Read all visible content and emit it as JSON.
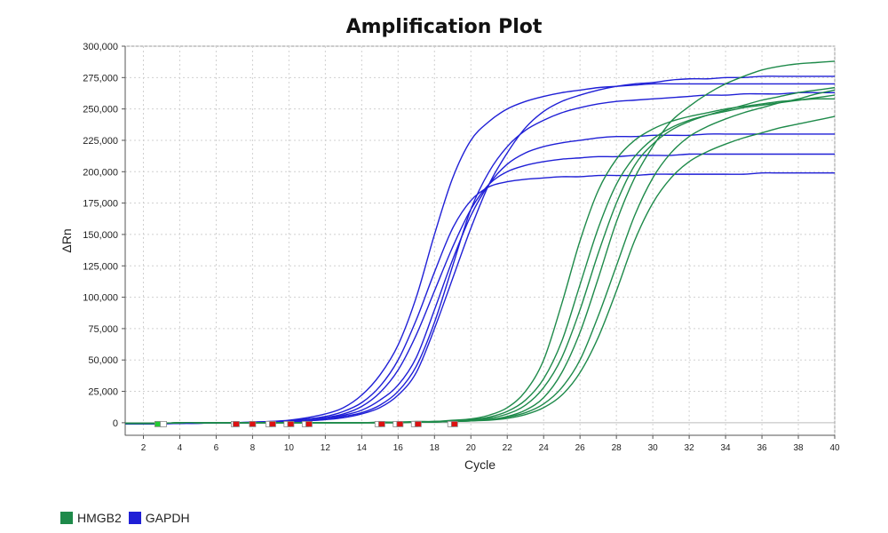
{
  "chart_data": {
    "type": "line",
    "title": "Amplification Plot",
    "xlabel": "Cycle",
    "ylabel": "ΔRn",
    "xlim": [
      1,
      40
    ],
    "ylim": [
      -10000,
      300000
    ],
    "xticks": [
      2,
      4,
      6,
      8,
      10,
      12,
      14,
      16,
      18,
      20,
      22,
      24,
      26,
      28,
      30,
      32,
      34,
      36,
      38,
      40
    ],
    "xtick_labels": [
      "2",
      "4",
      "6",
      "8",
      "10",
      "12",
      "14",
      "16",
      "18",
      "20",
      "22",
      "24",
      "26",
      "28",
      "30",
      "32",
      "34",
      "36",
      "38",
      "40"
    ],
    "yticks": [
      0,
      25000,
      50000,
      75000,
      100000,
      125000,
      150000,
      175000,
      200000,
      225000,
      250000,
      275000,
      300000
    ],
    "ytick_labels": [
      "0",
      "25,000",
      "50,000",
      "75,000",
      "100,000",
      "125,000",
      "150,000",
      "175,000",
      "200,000",
      "225,000",
      "250,000",
      "275,000",
      "300,000"
    ],
    "grid": true,
    "legend_position": "bottom-left",
    "legend": [
      {
        "label": "HMGB2",
        "color": "#1e8a4a"
      },
      {
        "label": "GAPDH",
        "color": "#1f1fd6"
      }
    ],
    "x": [
      1,
      2,
      3,
      4,
      5,
      6,
      7,
      8,
      9,
      10,
      11,
      12,
      13,
      14,
      15,
      16,
      17,
      18,
      19,
      20,
      21,
      22,
      23,
      24,
      25,
      26,
      27,
      28,
      29,
      30,
      31,
      32,
      33,
      34,
      35,
      36,
      37,
      38,
      39,
      40
    ],
    "series": [
      {
        "group": "GAPDH",
        "color": "#1f1fd6",
        "values": [
          -1000,
          -1000,
          -1000,
          -500,
          -500,
          0,
          0,
          500,
          1000,
          2000,
          4000,
          7000,
          12000,
          22000,
          38000,
          62000,
          100000,
          150000,
          195000,
          225000,
          240000,
          250000,
          256000,
          260000,
          263000,
          265000,
          267000,
          268000,
          269000,
          270000,
          270000,
          270000,
          270000,
          270000,
          270000,
          270000,
          270000,
          270000,
          270000,
          270000
        ]
      },
      {
        "group": "GAPDH",
        "color": "#1f1fd6",
        "values": [
          -1000,
          -1000,
          -500,
          -500,
          -500,
          0,
          0,
          0,
          500,
          1000,
          2000,
          4000,
          7000,
          13000,
          24000,
          42000,
          70000,
          105000,
          140000,
          170000,
          190000,
          200000,
          205000,
          208000,
          210000,
          211000,
          212000,
          212000,
          213000,
          213000,
          213000,
          214000,
          214000,
          214000,
          214000,
          214000,
          214000,
          214000,
          214000,
          214000
        ]
      },
      {
        "group": "GAPDH",
        "color": "#1f1fd6",
        "values": [
          -1000,
          -1000,
          -500,
          -500,
          0,
          0,
          0,
          500,
          1000,
          1500,
          3000,
          5000,
          9000,
          16000,
          29000,
          50000,
          82000,
          120000,
          155000,
          177000,
          188000,
          192000,
          194000,
          195000,
          196000,
          196000,
          197000,
          197000,
          197000,
          198000,
          198000,
          198000,
          198000,
          198000,
          198000,
          199000,
          199000,
          199000,
          199000,
          199000
        ]
      },
      {
        "group": "GAPDH",
        "color": "#1f1fd6",
        "values": [
          -1000,
          -1000,
          -500,
          -500,
          0,
          0,
          0,
          0,
          500,
          1000,
          2000,
          3500,
          6000,
          10000,
          18000,
          30000,
          52000,
          90000,
          130000,
          165000,
          190000,
          206000,
          215000,
          220000,
          223000,
          225000,
          227000,
          228000,
          228000,
          229000,
          229000,
          229000,
          230000,
          230000,
          230000,
          230000,
          230000,
          230000,
          230000,
          230000
        ]
      },
      {
        "group": "GAPDH",
        "color": "#1f1fd6",
        "values": [
          -1000,
          -1000,
          -500,
          -500,
          0,
          0,
          0,
          0,
          500,
          800,
          1500,
          2500,
          5000,
          8000,
          14000,
          25000,
          45000,
          80000,
          125000,
          170000,
          200000,
          220000,
          233000,
          241000,
          247000,
          251000,
          254000,
          256000,
          257000,
          258000,
          259000,
          260000,
          261000,
          261000,
          262000,
          262000,
          262000,
          263000,
          263000,
          263000
        ]
      },
      {
        "group": "GAPDH",
        "color": "#1f1fd6",
        "values": [
          -1000,
          -1000,
          -500,
          -500,
          0,
          0,
          0,
          0,
          500,
          800,
          1500,
          2500,
          4000,
          7000,
          12000,
          22000,
          40000,
          75000,
          115000,
          155000,
          190000,
          215000,
          235000,
          248000,
          256000,
          261000,
          265000,
          268000,
          270000,
          271000,
          273000,
          274000,
          274000,
          275000,
          275000,
          276000,
          276000,
          276000,
          276000,
          276000
        ]
      },
      {
        "group": "HMGB2",
        "color": "#1e8a4a",
        "values": [
          -500,
          -500,
          -500,
          0,
          0,
          0,
          0,
          0,
          0,
          0,
          0,
          0,
          0,
          0,
          500,
          500,
          1000,
          1000,
          2000,
          3000,
          6000,
          12000,
          25000,
          50000,
          95000,
          145000,
          185000,
          210000,
          225000,
          234000,
          240000,
          244000,
          247000,
          250000,
          252000,
          254000,
          256000,
          257000,
          258000,
          258000
        ]
      },
      {
        "group": "HMGB2",
        "color": "#1e8a4a",
        "values": [
          -500,
          -500,
          -500,
          0,
          0,
          0,
          0,
          0,
          0,
          0,
          0,
          0,
          0,
          0,
          0,
          500,
          500,
          1000,
          1500,
          2500,
          4500,
          9000,
          18000,
          35000,
          65000,
          110000,
          155000,
          190000,
          212000,
          226000,
          235000,
          241000,
          245000,
          248000,
          251000,
          253000,
          255000,
          257000,
          259000,
          261000
        ]
      },
      {
        "group": "HMGB2",
        "color": "#1e8a4a",
        "values": [
          -500,
          -500,
          -500,
          0,
          0,
          0,
          0,
          0,
          0,
          0,
          0,
          0,
          0,
          0,
          0,
          500,
          500,
          1000,
          1500,
          2000,
          3500,
          7000,
          14000,
          28000,
          52000,
          90000,
          135000,
          175000,
          205000,
          222000,
          233000,
          240000,
          245000,
          249000,
          253000,
          257000,
          260000,
          263000,
          265000,
          267000
        ]
      },
      {
        "group": "HMGB2",
        "color": "#1e8a4a",
        "values": [
          -500,
          -500,
          -500,
          0,
          0,
          0,
          0,
          0,
          0,
          0,
          0,
          0,
          0,
          0,
          0,
          0,
          500,
          500,
          1000,
          1500,
          2500,
          5000,
          10000,
          20000,
          40000,
          72000,
          115000,
          160000,
          195000,
          220000,
          240000,
          252000,
          262000,
          270000,
          276000,
          281000,
          284000,
          286000,
          287000,
          288000
        ]
      },
      {
        "group": "HMGB2",
        "color": "#1e8a4a",
        "values": [
          -500,
          -500,
          -500,
          0,
          0,
          0,
          0,
          0,
          0,
          0,
          0,
          0,
          0,
          0,
          0,
          0,
          500,
          500,
          1000,
          1500,
          2500,
          4500,
          8000,
          15000,
          28000,
          50000,
          85000,
          125000,
          165000,
          195000,
          215000,
          228000,
          236000,
          242000,
          247000,
          251000,
          255000,
          258000,
          262000,
          265000
        ]
      },
      {
        "group": "HMGB2",
        "color": "#1e8a4a",
        "values": [
          -500,
          -500,
          -500,
          0,
          0,
          0,
          0,
          0,
          0,
          0,
          0,
          0,
          0,
          0,
          0,
          0,
          500,
          500,
          1000,
          1500,
          2000,
          3500,
          6500,
          12000,
          22000,
          40000,
          68000,
          105000,
          145000,
          175000,
          195000,
          208000,
          216000,
          222000,
          227000,
          231000,
          235000,
          238000,
          241000,
          244000
        ]
      }
    ],
    "markers": [
      {
        "x": 2.8,
        "color": "#22cc33"
      },
      {
        "x": 3.1,
        "color": "#ffffff"
      },
      {
        "x": 7.0,
        "color": "#ffffff"
      },
      {
        "x": 7.1,
        "color": "#dd1111"
      },
      {
        "x": 8.0,
        "color": "#dd1111"
      },
      {
        "x": 8.9,
        "color": "#ffffff"
      },
      {
        "x": 9.1,
        "color": "#dd1111"
      },
      {
        "x": 9.9,
        "color": "#ffffff"
      },
      {
        "x": 10.1,
        "color": "#dd1111"
      },
      {
        "x": 10.9,
        "color": "#ffffff"
      },
      {
        "x": 11.1,
        "color": "#dd1111"
      },
      {
        "x": 14.9,
        "color": "#ffffff"
      },
      {
        "x": 15.1,
        "color": "#dd1111"
      },
      {
        "x": 15.9,
        "color": "#ffffff"
      },
      {
        "x": 16.1,
        "color": "#dd1111"
      },
      {
        "x": 16.9,
        "color": "#ffffff"
      },
      {
        "x": 17.1,
        "color": "#dd1111"
      },
      {
        "x": 18.9,
        "color": "#ffffff"
      },
      {
        "x": 19.1,
        "color": "#dd1111"
      }
    ]
  }
}
